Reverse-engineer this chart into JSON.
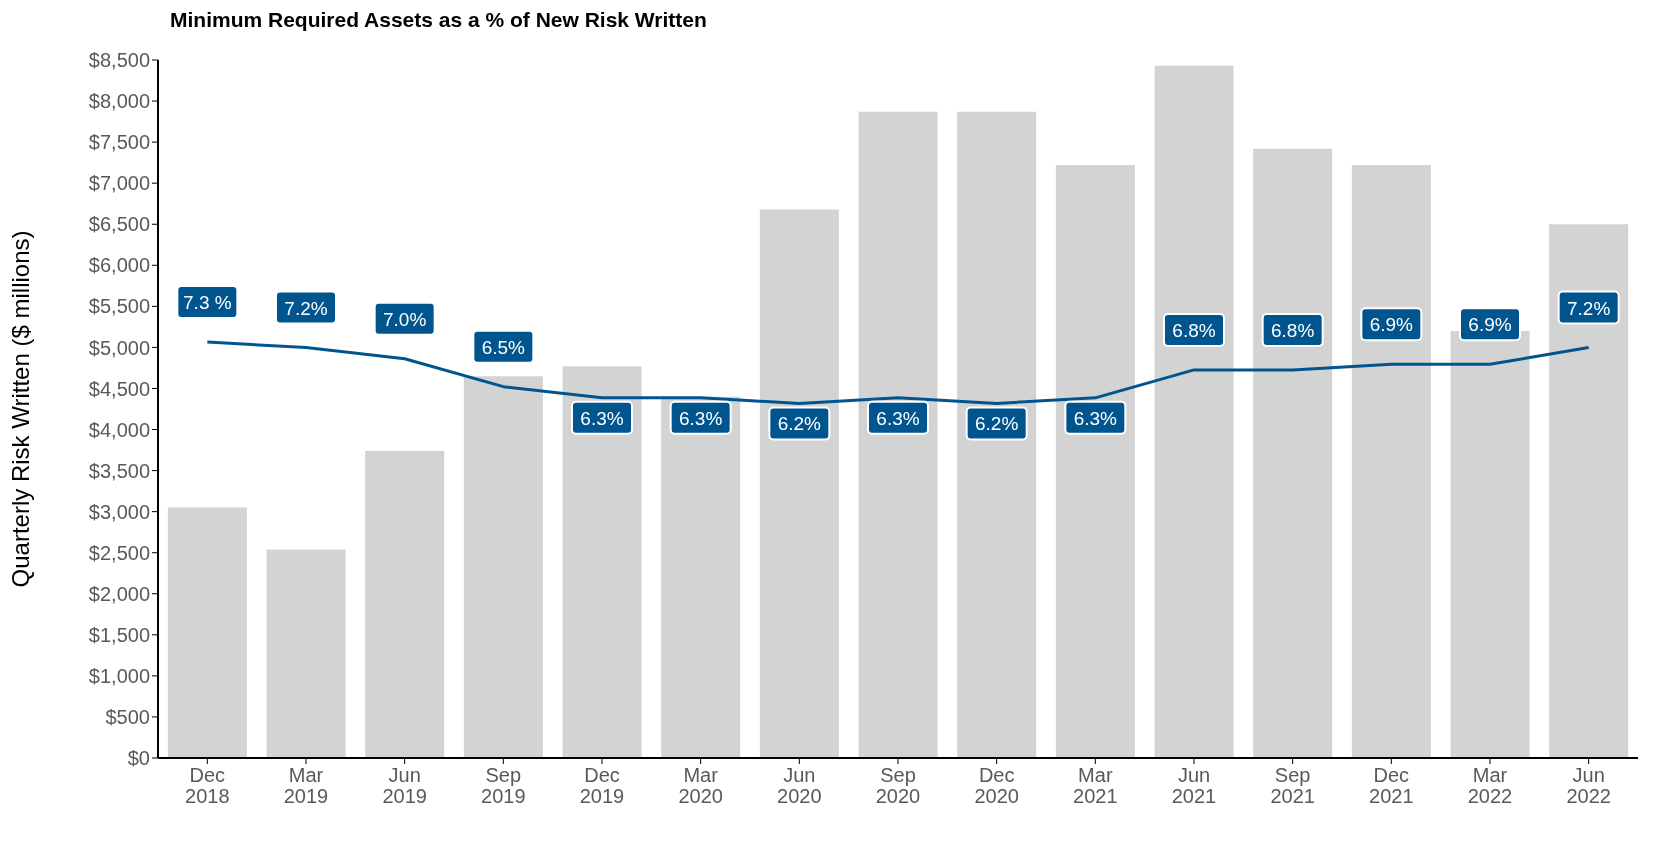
{
  "chart_data": {
    "type": "bar",
    "title": "Minimum Required Assets as a % of New Risk Written",
    "ylabel": "Quarterly Risk Written ($ millions)",
    "categories": [
      "Dec 2018",
      "Mar 2019",
      "Jun 2019",
      "Sep 2019",
      "Dec 2019",
      "Mar 2020",
      "Jun 2020",
      "Sep 2020",
      "Dec 2020",
      "Mar 2021",
      "Jun 2021",
      "Sep 2021",
      "Dec 2021",
      "Mar 2022",
      "Jun 2022"
    ],
    "series": [
      {
        "color": "#d3d3d3",
        "values": [
          3050,
          2540,
          3740,
          4650,
          4770,
          4400,
          6680,
          7870,
          7870,
          7220,
          8430,
          7420,
          7220,
          5200,
          6500
        ]
      },
      {
        "type": "line",
        "axis": "y2",
        "color": "#00558f",
        "values": [
          7.3,
          7.2,
          7.0,
          6.5,
          6.3,
          6.3,
          6.2,
          6.3,
          6.2,
          6.3,
          6.8,
          6.8,
          6.9,
          6.9,
          7.2
        ],
        "value_labels": [
          "7.3 %",
          "7.2%",
          "7.0%",
          "6.5%",
          "6.3%",
          "6.3%",
          "6.2%",
          "6.3%",
          "6.2%",
          "6.3%",
          "6.8%",
          "6.8%",
          "6.9%",
          "6.9%",
          "7.2%"
        ]
      }
    ],
    "ylim": [
      0,
      8500
    ],
    "yticks": [
      {
        "value": 0,
        "label": "$0"
      },
      {
        "value": 500,
        "label": "$500"
      },
      {
        "value": 1000,
        "label": "$1,000"
      },
      {
        "value": 1500,
        "label": "$1,500"
      },
      {
        "value": 2000,
        "label": "$2,000"
      },
      {
        "value": 2500,
        "label": "$2,500"
      },
      {
        "value": 3000,
        "label": "$3,000"
      },
      {
        "value": 3500,
        "label": "$3,500"
      },
      {
        "value": 4000,
        "label": "$4,000"
      },
      {
        "value": 4500,
        "label": "$4,500"
      },
      {
        "value": 5000,
        "label": "$5,000"
      },
      {
        "value": 5500,
        "label": "$5,500"
      },
      {
        "value": 6000,
        "label": "$6,000"
      },
      {
        "value": 6500,
        "label": "$6,500"
      },
      {
        "value": 7000,
        "label": "$7,000"
      },
      {
        "value": 7500,
        "label": "$7,500"
      },
      {
        "value": 8000,
        "label": "$8,000"
      },
      {
        "value": 8500,
        "label": "$8,500"
      }
    ],
    "y2lim": [
      -0.15,
      12.35
    ],
    "grid": false,
    "legend": false
  }
}
